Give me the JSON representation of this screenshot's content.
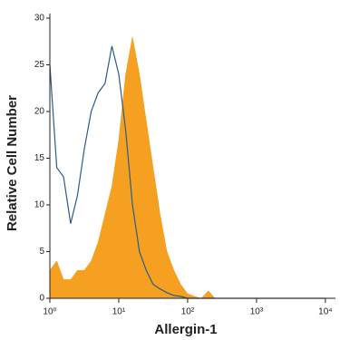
{
  "chart_data": {
    "type": "histogram-overlay",
    "xlabel": "Allergin-1",
    "ylabel": "Relative Cell Number",
    "log_x": true,
    "x": [
      1,
      1.26,
      1.58,
      2,
      2.51,
      3.16,
      3.98,
      5.01,
      6.31,
      7.94,
      10,
      12.6,
      15.8,
      20,
      25.1,
      31.6,
      39.8,
      50.1,
      63.1,
      79.4,
      100,
      126,
      158,
      200,
      251,
      1000,
      10000
    ],
    "series": [
      {
        "style": "filled",
        "color": "#f5a021",
        "values": [
          3,
          4,
          2,
          2,
          3,
          3,
          4,
          6,
          9,
          12,
          17,
          24,
          28,
          24,
          19,
          14,
          9,
          5,
          3,
          1.5,
          0.5,
          0.2,
          0,
          0.8,
          0,
          0,
          0
        ]
      },
      {
        "style": "outline",
        "color": "#2a5d8a",
        "values": [
          25,
          14,
          13,
          8,
          11,
          16,
          20,
          22,
          23,
          27,
          24,
          18,
          10,
          5,
          3,
          1.5,
          1,
          0.6,
          0.3,
          0.2,
          0,
          0,
          0,
          0,
          0,
          0,
          0
        ]
      }
    ],
    "xlim": [
      1,
      14000
    ],
    "ylim": [
      0,
      30
    ],
    "xticks": [
      {
        "value": 1,
        "label": "10⁰"
      },
      {
        "value": 10,
        "label": "10¹"
      },
      {
        "value": 100,
        "label": "10²"
      },
      {
        "value": 1000,
        "label": "10³"
      },
      {
        "value": 10000,
        "label": "10⁴"
      }
    ],
    "yticks": [
      0,
      5,
      10,
      15,
      20,
      25,
      30
    ]
  }
}
